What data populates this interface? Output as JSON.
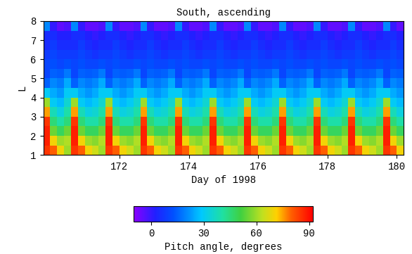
{
  "chart_data": {
    "type": "heatmap",
    "title": "South, ascending",
    "x_label": "Day of 1998",
    "y_label": "L",
    "xlim": [
      169.8,
      180.2
    ],
    "xticks": [
      172,
      174,
      176,
      178,
      180
    ],
    "ylim": [
      1,
      8
    ],
    "yticks": [
      1,
      2,
      3,
      4,
      5,
      6,
      7,
      8
    ],
    "x_edges": [
      169.8,
      170.0,
      170.2,
      170.4,
      170.6,
      170.8,
      171.0,
      171.2,
      171.4,
      171.6,
      171.8,
      172.0,
      172.2,
      172.4,
      172.6,
      172.8,
      173.0,
      173.2,
      173.4,
      173.6,
      173.8,
      174.0,
      174.2,
      174.4,
      174.6,
      174.8,
      175.0,
      175.2,
      175.4,
      175.6,
      175.8,
      176.0,
      176.2,
      176.4,
      176.6,
      176.8,
      177.0,
      177.2,
      177.4,
      177.6,
      177.8,
      178.0,
      178.2,
      178.4,
      178.6,
      178.8,
      179.0,
      179.2,
      179.4,
      179.6,
      179.8,
      180.0,
      180.2
    ],
    "y_edges": [
      1.0,
      1.5,
      2.0,
      2.5,
      3.0,
      3.5,
      4.0,
      4.5,
      5.0,
      5.5,
      6.0,
      6.5,
      7.0,
      7.5,
      8.0
    ],
    "cells": [
      [
        85,
        80,
        70,
        60,
        85,
        80,
        70,
        65,
        60,
        85,
        80,
        70,
        65,
        60,
        85,
        80,
        70,
        65,
        60,
        85,
        80,
        70,
        65,
        60,
        85,
        80,
        70,
        65,
        60,
        85,
        80,
        70,
        65,
        60,
        85,
        80,
        70,
        65,
        60,
        85,
        80,
        70,
        65,
        60,
        85,
        80,
        70,
        65,
        60,
        85,
        80,
        70
      ],
      [
        88,
        70,
        60,
        62,
        88,
        70,
        60,
        58,
        62,
        88,
        70,
        60,
        58,
        62,
        88,
        70,
        60,
        58,
        62,
        88,
        70,
        60,
        58,
        62,
        88,
        70,
        60,
        58,
        62,
        88,
        70,
        60,
        58,
        62,
        88,
        70,
        60,
        58,
        62,
        88,
        70,
        60,
        58,
        62,
        88,
        70,
        60,
        58,
        62,
        88,
        70,
        60
      ],
      [
        88,
        55,
        48,
        55,
        88,
        55,
        48,
        48,
        55,
        88,
        55,
        48,
        48,
        55,
        88,
        55,
        48,
        48,
        55,
        88,
        55,
        48,
        48,
        55,
        88,
        55,
        48,
        48,
        55,
        88,
        55,
        48,
        48,
        55,
        88,
        55,
        48,
        48,
        55,
        88,
        55,
        48,
        48,
        55,
        88,
        55,
        48,
        48,
        55,
        88,
        55,
        48
      ],
      [
        85,
        45,
        40,
        45,
        85,
        45,
        40,
        40,
        45,
        85,
        45,
        40,
        40,
        45,
        85,
        45,
        40,
        40,
        45,
        85,
        45,
        40,
        40,
        45,
        85,
        45,
        40,
        40,
        45,
        85,
        45,
        40,
        40,
        45,
        85,
        45,
        40,
        40,
        45,
        85,
        45,
        40,
        40,
        45,
        85,
        45,
        40,
        40,
        45,
        85,
        45,
        40
      ],
      [
        75,
        38,
        33,
        40,
        75,
        38,
        33,
        35,
        40,
        75,
        38,
        33,
        35,
        40,
        75,
        38,
        33,
        35,
        40,
        75,
        38,
        33,
        35,
        40,
        75,
        38,
        33,
        35,
        40,
        75,
        38,
        33,
        35,
        40,
        75,
        38,
        33,
        35,
        40,
        75,
        38,
        33,
        35,
        40,
        75,
        38,
        33,
        35,
        40,
        75,
        38,
        33
      ],
      [
        60,
        30,
        27,
        35,
        60,
        30,
        27,
        30,
        35,
        60,
        30,
        27,
        30,
        35,
        60,
        30,
        27,
        30,
        35,
        60,
        30,
        27,
        30,
        35,
        60,
        30,
        27,
        30,
        35,
        60,
        30,
        27,
        30,
        35,
        60,
        30,
        27,
        30,
        35,
        60,
        30,
        27,
        30,
        35,
        60,
        30,
        27,
        30,
        35,
        60,
        30,
        27
      ],
      [
        30,
        25,
        22,
        30,
        30,
        25,
        22,
        25,
        30,
        30,
        25,
        22,
        25,
        30,
        30,
        25,
        22,
        25,
        30,
        30,
        25,
        22,
        25,
        30,
        30,
        25,
        22,
        25,
        30,
        30,
        25,
        22,
        25,
        30,
        30,
        25,
        22,
        25,
        30,
        30,
        25,
        22,
        25,
        30,
        30,
        25,
        22,
        25,
        30,
        30,
        25,
        22
      ],
      [
        15,
        20,
        18,
        25,
        15,
        20,
        18,
        20,
        25,
        15,
        20,
        18,
        20,
        25,
        15,
        20,
        18,
        20,
        25,
        15,
        20,
        18,
        20,
        25,
        15,
        20,
        18,
        20,
        25,
        15,
        20,
        18,
        20,
        25,
        15,
        20,
        18,
        20,
        25,
        15,
        20,
        18,
        20,
        25,
        15,
        20,
        18,
        20,
        25,
        15,
        20,
        18
      ],
      [
        10,
        15,
        14,
        18,
        10,
        15,
        14,
        15,
        18,
        10,
        15,
        14,
        15,
        18,
        10,
        15,
        14,
        15,
        18,
        10,
        15,
        14,
        15,
        18,
        10,
        15,
        14,
        15,
        18,
        10,
        15,
        14,
        15,
        18,
        10,
        15,
        14,
        15,
        18,
        10,
        15,
        14,
        15,
        18,
        10,
        15,
        14,
        15,
        18,
        10,
        15,
        14
      ],
      [
        10,
        12,
        10,
        12,
        10,
        12,
        10,
        10,
        12,
        10,
        12,
        10,
        10,
        12,
        10,
        12,
        10,
        10,
        12,
        10,
        12,
        10,
        10,
        12,
        10,
        12,
        10,
        10,
        12,
        10,
        12,
        10,
        10,
        12,
        10,
        12,
        10,
        10,
        12,
        10,
        12,
        10,
        10,
        12,
        10,
        12,
        10,
        10,
        12,
        10,
        12,
        10
      ],
      [
        8,
        10,
        8,
        8,
        8,
        10,
        8,
        6,
        8,
        8,
        10,
        8,
        6,
        8,
        8,
        10,
        8,
        6,
        8,
        8,
        10,
        8,
        6,
        8,
        8,
        10,
        8,
        6,
        8,
        8,
        10,
        8,
        6,
        8,
        8,
        10,
        8,
        6,
        8,
        8,
        10,
        8,
        6,
        8,
        8,
        10,
        8,
        6,
        8,
        8,
        10,
        8
      ],
      [
        5,
        8,
        5,
        5,
        5,
        8,
        5,
        3,
        5,
        5,
        8,
        5,
        3,
        5,
        5,
        8,
        5,
        3,
        5,
        5,
        8,
        5,
        3,
        5,
        5,
        8,
        5,
        3,
        5,
        5,
        8,
        5,
        3,
        5,
        5,
        8,
        5,
        3,
        5,
        5,
        8,
        5,
        3,
        5,
        5,
        8,
        5,
        3,
        5,
        5,
        8,
        5
      ],
      [
        5,
        5,
        2,
        2,
        5,
        5,
        2,
        0,
        2,
        5,
        5,
        2,
        0,
        2,
        5,
        5,
        2,
        0,
        2,
        5,
        5,
        2,
        0,
        2,
        5,
        5,
        2,
        0,
        2,
        5,
        5,
        2,
        0,
        2,
        5,
        5,
        2,
        0,
        2,
        5,
        5,
        2,
        0,
        2,
        5,
        5,
        2,
        0,
        2,
        5,
        5,
        2
      ],
      [
        20,
        0,
        -5,
        -3,
        20,
        0,
        -5,
        -5,
        -3,
        20,
        0,
        -5,
        -5,
        -3,
        20,
        0,
        -5,
        -5,
        -3,
        20,
        0,
        -5,
        -5,
        -3,
        20,
        0,
        -5,
        -5,
        -3,
        20,
        0,
        -5,
        -5,
        -3,
        20,
        0,
        -5,
        -5,
        -3,
        20,
        0,
        -5,
        -5,
        -3,
        20,
        0,
        -5,
        -5,
        -3,
        20,
        0,
        -5
      ]
    ],
    "colorbar": {
      "label": "Pitch angle, degrees",
      "lim": [
        -10,
        92
      ],
      "ticks": [
        0,
        30,
        60,
        90
      ]
    }
  }
}
